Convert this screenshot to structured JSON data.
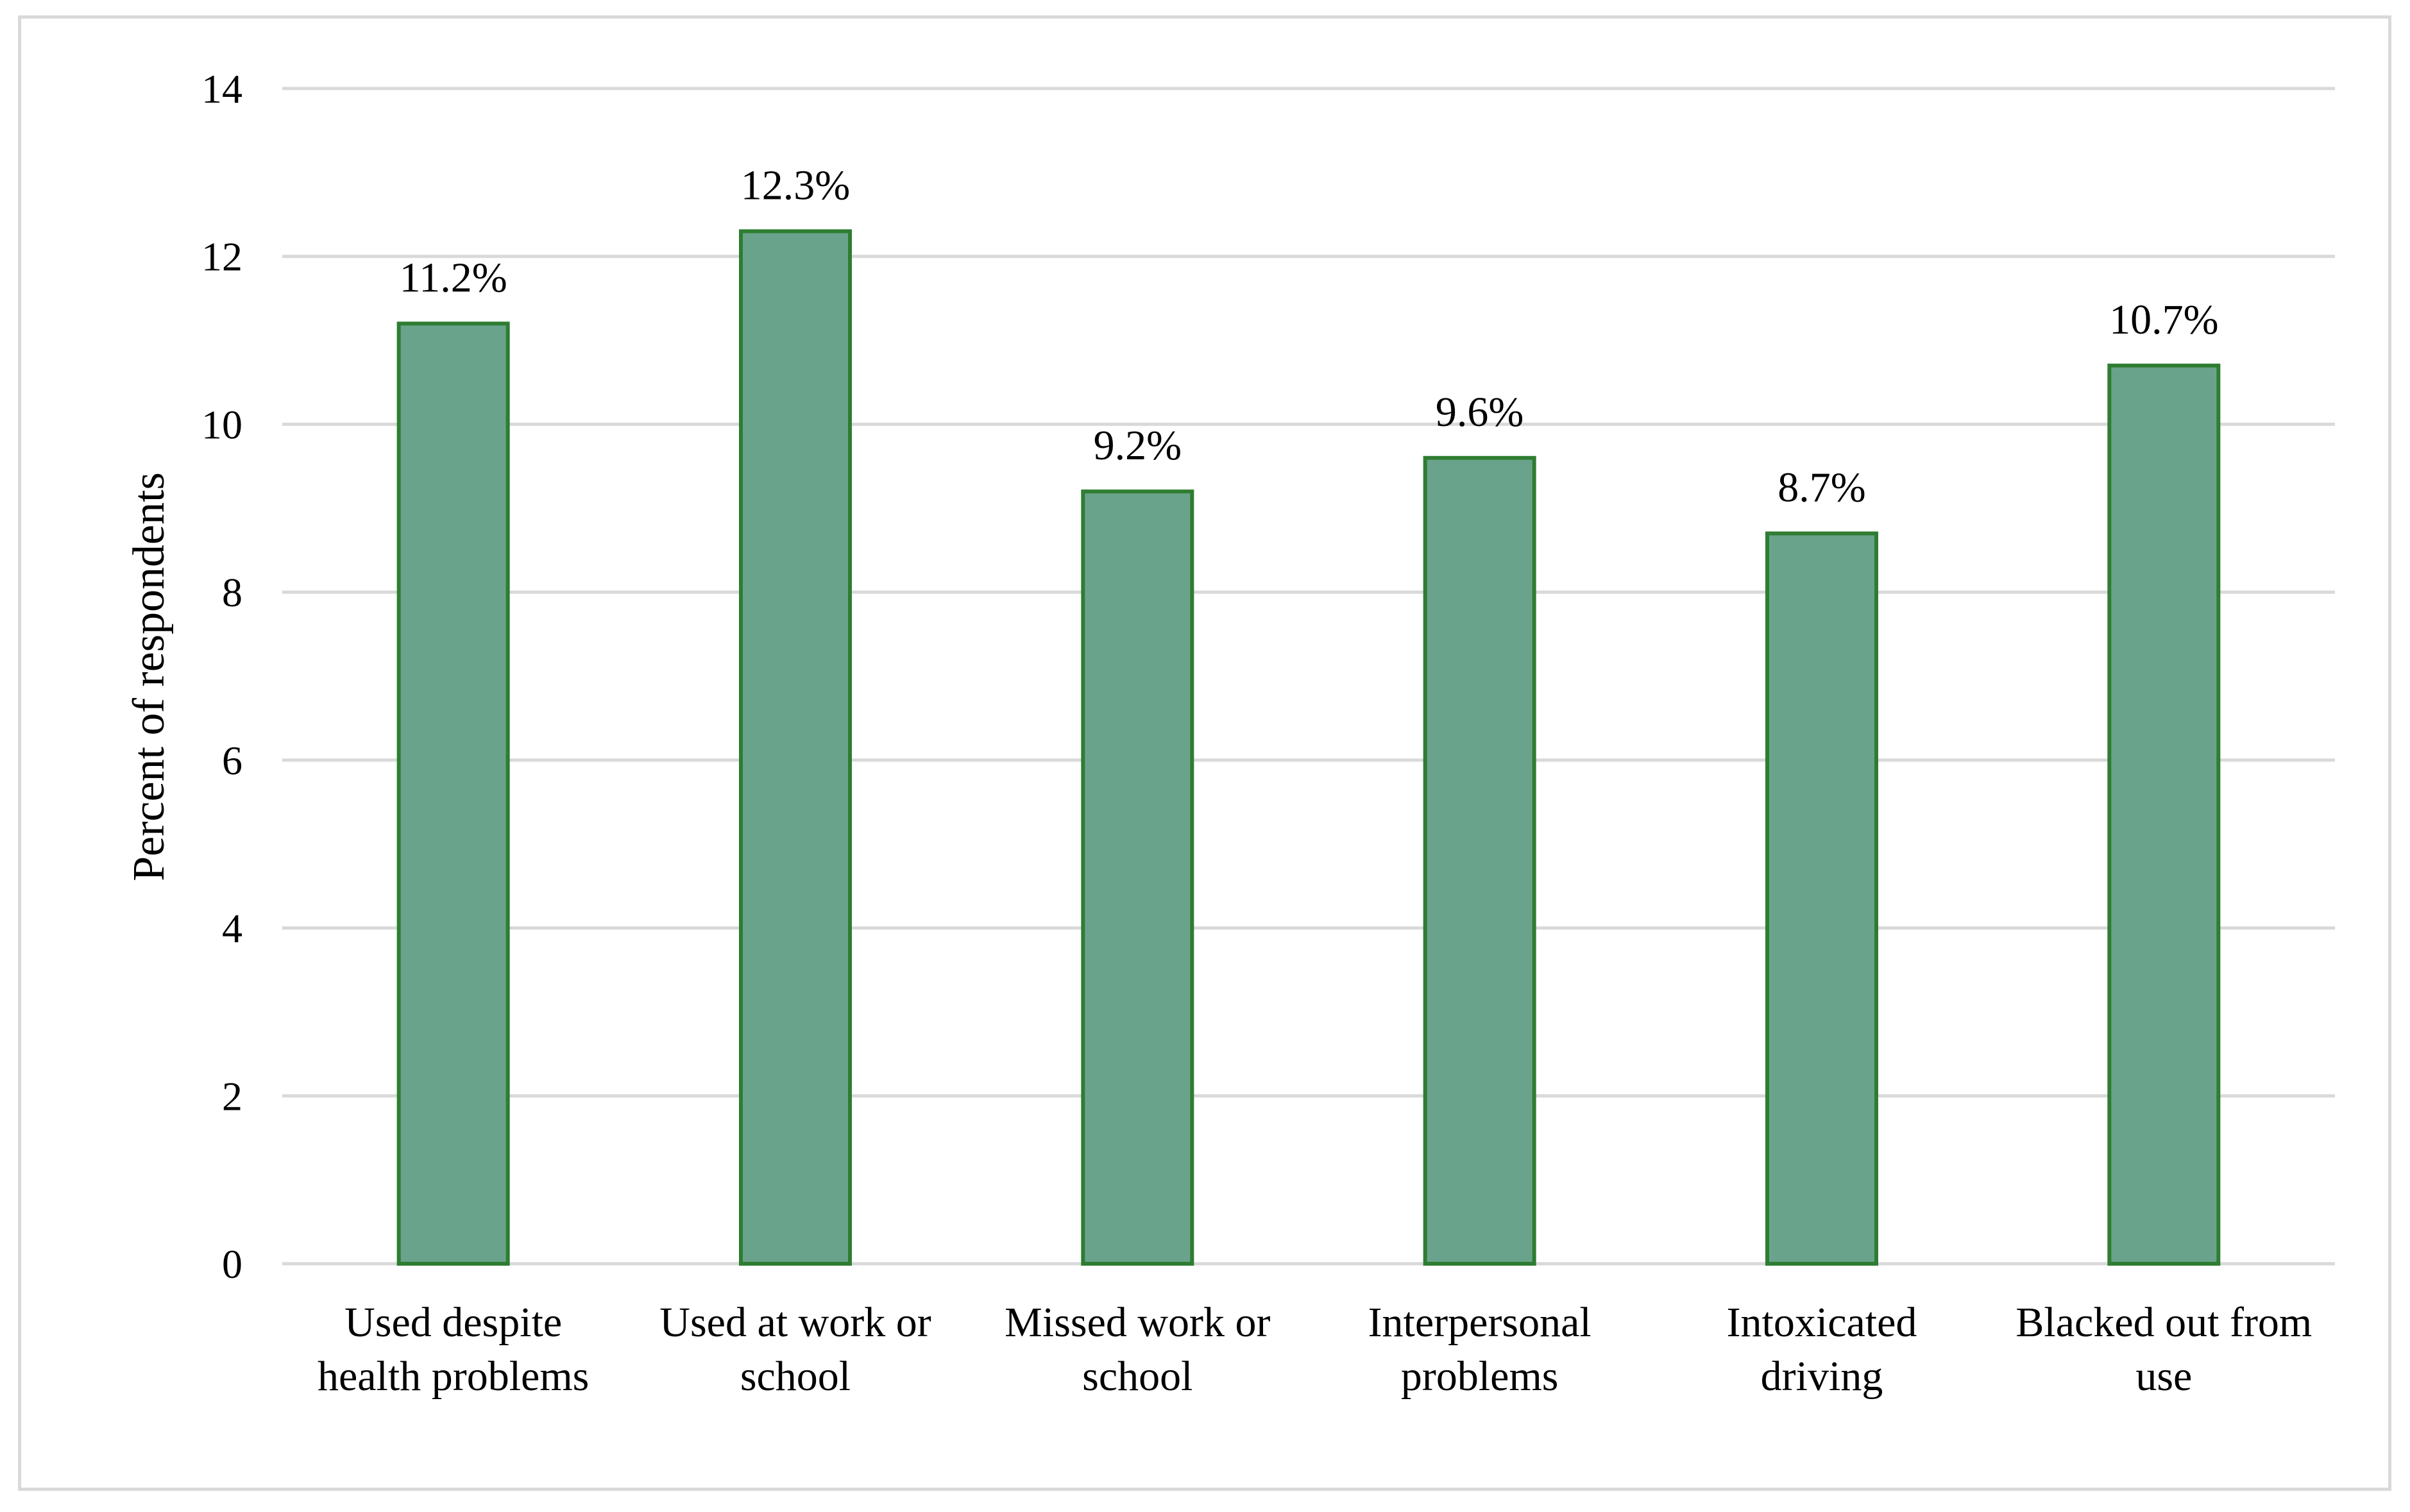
{
  "chart_data": {
    "type": "bar",
    "title": "",
    "xlabel": "",
    "ylabel": "Percent of respondents",
    "ylim": [
      0,
      14
    ],
    "yticks": [
      "0",
      "2",
      "4",
      "6",
      "8",
      "10",
      "12",
      "14"
    ],
    "grid": true,
    "categories": [
      [
        "Used despite",
        "health problems"
      ],
      [
        "Used at work or",
        "school"
      ],
      [
        "Missed work or",
        "school"
      ],
      [
        "Interpersonal",
        "problems"
      ],
      [
        "Intoxicated",
        "driving"
      ],
      [
        "Blacked out from",
        "use"
      ]
    ],
    "values": [
      11.2,
      12.3,
      9.2,
      9.6,
      8.7,
      10.7
    ],
    "data_labels": [
      "11.2%",
      "12.3%",
      "9.2%",
      "9.6%",
      "8.7%",
      "10.7%"
    ],
    "colors": {
      "bar_fill": "#6aa38b",
      "bar_edge": "#2e7d32",
      "grid": "#d9d9d9"
    }
  }
}
